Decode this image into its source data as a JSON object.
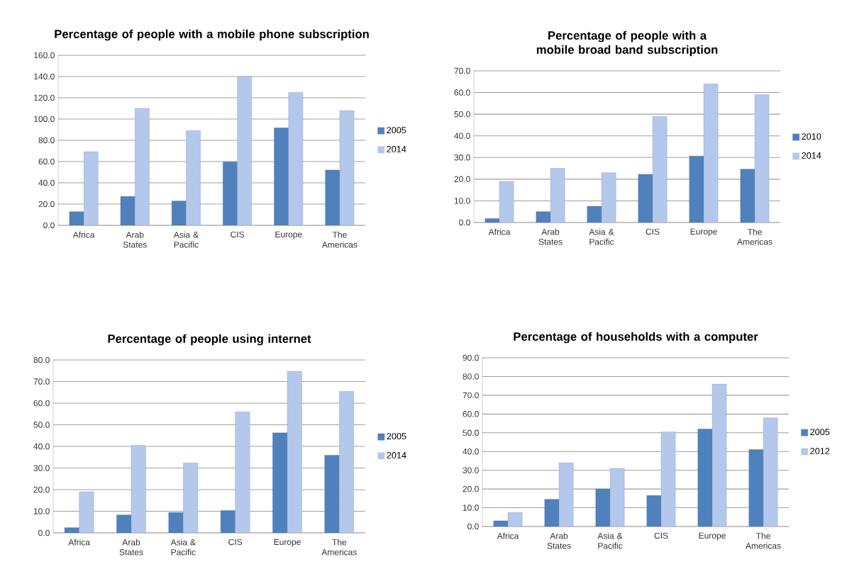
{
  "chart_data": [
    {
      "type": "bar",
      "title": "Percentage of people with a mobile phone subscription",
      "categories": [
        "Africa",
        "Arab\nStates",
        "Asia &\nPacific",
        "CIS",
        "Europe",
        "The\nAmericas"
      ],
      "series": [
        {
          "name": "2005",
          "color": "#4f81bd",
          "values": [
            12.8,
            27.1,
            22.9,
            59.7,
            91.7,
            52.0
          ]
        },
        {
          "name": "2014",
          "color": "#b4c8ec",
          "values": [
            69.3,
            110.0,
            89.1,
            140.0,
            125.0,
            108.0
          ]
        }
      ],
      "ylim": [
        0,
        160
      ],
      "yticks": [
        {
          "value": 0,
          "label": "0.0"
        },
        {
          "value": 20,
          "label": "20.0"
        },
        {
          "value": 40,
          "label": "40.0"
        },
        {
          "value": 60,
          "label": "60.0"
        },
        {
          "value": 80,
          "label": "80.0"
        },
        {
          "value": 100,
          "label": "100.0"
        },
        {
          "value": 120,
          "label": "120.0"
        },
        {
          "value": 140,
          "label": "140.0"
        },
        {
          "value": 160,
          "label": "160.0"
        }
      ],
      "grid": "y",
      "legend": "right"
    },
    {
      "type": "bar",
      "title": "Percentage of people with a mobile broad band subscription",
      "categories": [
        "Africa",
        "Arab\nStates",
        "Asia &\nPacific",
        "CIS",
        "Europe",
        "The\nAmericas"
      ],
      "series": [
        {
          "name": "2010",
          "color": "#4f81bd",
          "values": [
            1.8,
            5.0,
            7.5,
            22.2,
            30.7,
            24.6
          ]
        },
        {
          "name": "2014",
          "color": "#b4c8ec",
          "values": [
            19.0,
            25.0,
            23.0,
            49.0,
            64.0,
            59.0
          ]
        }
      ],
      "ylim": [
        0,
        70
      ],
      "yticks": [
        {
          "value": 0,
          "label": "0.0"
        },
        {
          "value": 10,
          "label": "10.0"
        },
        {
          "value": 20,
          "label": "20.0"
        },
        {
          "value": 30,
          "label": "30.0"
        },
        {
          "value": 40,
          "label": "40.0"
        },
        {
          "value": 50,
          "label": "50.0"
        },
        {
          "value": 60,
          "label": "60.0"
        },
        {
          "value": 70,
          "label": "70.0"
        }
      ],
      "grid": "y",
      "legend": "right"
    },
    {
      "type": "bar",
      "title": "Percentage of people using internet",
      "categories": [
        "Africa",
        "Arab\nStates",
        "Asia &\nPacific",
        "CIS",
        "Europe",
        "The\nAmericas"
      ],
      "series": [
        {
          "name": "2005",
          "color": "#4f81bd",
          "values": [
            2.4,
            8.3,
            9.4,
            10.3,
            46.3,
            35.9
          ]
        },
        {
          "name": "2014",
          "color": "#b4c8ec",
          "values": [
            19.0,
            40.5,
            32.4,
            56.0,
            74.8,
            65.5
          ]
        }
      ],
      "ylim": [
        0,
        80
      ],
      "yticks": [
        {
          "value": 0,
          "label": "0.0"
        },
        {
          "value": 10,
          "label": "10.0"
        },
        {
          "value": 20,
          "label": "20.0"
        },
        {
          "value": 30,
          "label": "30.0"
        },
        {
          "value": 40,
          "label": "40.0"
        },
        {
          "value": 50,
          "label": "50.0"
        },
        {
          "value": 60,
          "label": "60.0"
        },
        {
          "value": 70,
          "label": "70.0"
        },
        {
          "value": 80,
          "label": "80.0"
        }
      ],
      "grid": "y",
      "legend": "right"
    },
    {
      "type": "bar",
      "title": "Percentage of households with a computer",
      "categories": [
        "Africa",
        "Arab\nStates",
        "Asia &\nPacific",
        "CIS",
        "Europe",
        "The\nAmericas"
      ],
      "series": [
        {
          "name": "2005",
          "color": "#4f81bd",
          "values": [
            3.0,
            14.5,
            20.0,
            16.5,
            52.0,
            41.0
          ]
        },
        {
          "name": "2012",
          "color": "#b4c8ec",
          "values": [
            7.5,
            34.0,
            31.0,
            50.5,
            76.0,
            58.0
          ]
        }
      ],
      "ylim": [
        0,
        90
      ],
      "yticks": [
        {
          "value": 0,
          "label": "0.0"
        },
        {
          "value": 10,
          "label": "10.0"
        },
        {
          "value": 20,
          "label": "20.0"
        },
        {
          "value": 30,
          "label": "30.0"
        },
        {
          "value": 40,
          "label": "40.0"
        },
        {
          "value": 50,
          "label": "50.0"
        },
        {
          "value": 60,
          "label": "60.0"
        },
        {
          "value": 70,
          "label": "70.0"
        },
        {
          "value": 80,
          "label": "80.0"
        },
        {
          "value": 90,
          "label": "90.0"
        }
      ],
      "grid": "y",
      "legend": "right"
    }
  ]
}
